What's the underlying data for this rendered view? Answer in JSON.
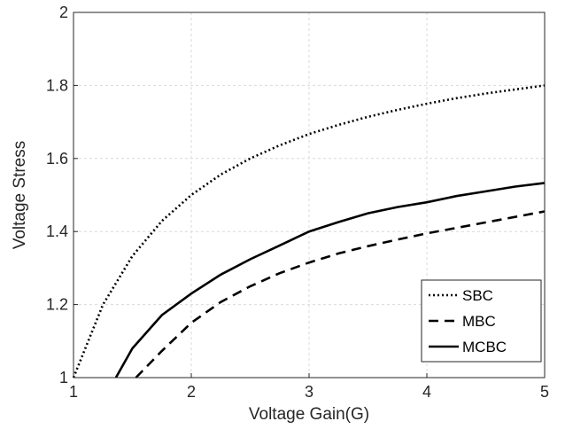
{
  "chart_data": {
    "type": "line",
    "xlabel": "Voltage Gain(G)",
    "ylabel": "Voltage Stress",
    "xlim": [
      1,
      5
    ],
    "ylim": [
      1,
      2
    ],
    "xticks": [
      "1",
      "2",
      "3",
      "4",
      "5"
    ],
    "yticks": [
      "1",
      "1.2",
      "1.4",
      "1.6",
      "1.8",
      "2"
    ],
    "grid": true,
    "legend_position": "bottom-right",
    "series": [
      {
        "name": "SBC",
        "style": "dotted",
        "color": "#000000",
        "x": [
          1,
          1.25,
          1.5,
          1.75,
          2,
          2.25,
          2.5,
          2.75,
          3,
          3.25,
          3.5,
          3.75,
          4,
          4.25,
          4.5,
          4.75,
          5
        ],
        "y": [
          1,
          1.2,
          1.333,
          1.429,
          1.5,
          1.556,
          1.6,
          1.636,
          1.667,
          1.692,
          1.714,
          1.733,
          1.75,
          1.765,
          1.778,
          1.789,
          1.8
        ]
      },
      {
        "name": "MBC",
        "style": "dashed",
        "color": "#000000",
        "x": [
          1.53,
          1.75,
          2,
          2.25,
          2.5,
          2.75,
          3,
          3.25,
          3.5,
          3.75,
          4,
          4.25,
          4.5,
          4.75,
          5
        ],
        "y": [
          1,
          1.073,
          1.15,
          1.207,
          1.25,
          1.286,
          1.315,
          1.34,
          1.36,
          1.378,
          1.395,
          1.41,
          1.425,
          1.44,
          1.455
        ]
      },
      {
        "name": "MCBC",
        "style": "solid",
        "color": "#000000",
        "x": [
          1.36,
          1.5,
          1.75,
          2,
          2.25,
          2.5,
          2.75,
          3,
          3.25,
          3.5,
          3.75,
          4,
          4.25,
          4.5,
          4.75,
          5
        ],
        "y": [
          1,
          1.08,
          1.171,
          1.23,
          1.282,
          1.324,
          1.362,
          1.4,
          1.426,
          1.45,
          1.467,
          1.48,
          1.497,
          1.51,
          1.523,
          1.533
        ]
      }
    ]
  }
}
